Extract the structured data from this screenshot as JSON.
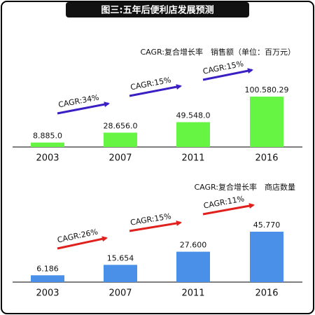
{
  "title": "图三:五年后便利店发展预测",
  "chart_data": [
    {
      "type": "bar",
      "legend_text": "CAGR:复合增长率　销售额（单位：百万元）",
      "categories": [
        "2003",
        "2007",
        "2011",
        "2016"
      ],
      "values": [
        8885.0,
        28656.0,
        49548.0,
        100580.29
      ],
      "value_labels": [
        "8.885.0",
        "28.656.0",
        "49.548.0",
        "100.580.29"
      ],
      "color": "#66f542",
      "arrow_color": "#3b1fc4",
      "annotations": [
        "CAGR:34%",
        "CAGR:15%",
        "CAGR:15%"
      ]
    },
    {
      "type": "bar",
      "legend_text": "CAGR:复合增长率　商店数量",
      "categories": [
        "2003",
        "2007",
        "2011",
        "2016"
      ],
      "values": [
        6.186,
        15.654,
        27.6,
        45.77
      ],
      "value_labels": [
        "6.186",
        "15.654",
        "27.600",
        "45.770"
      ],
      "color": "#4a8fe8",
      "arrow_color": "#e0201c",
      "annotations": [
        "CAGR:26%",
        "CAGR:15%",
        "CAGR:11%"
      ]
    }
  ]
}
